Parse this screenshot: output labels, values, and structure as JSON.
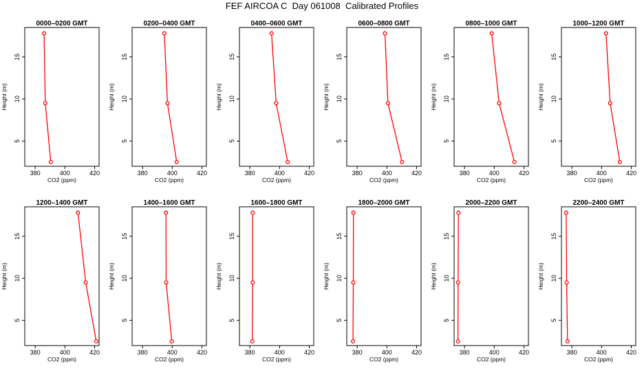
{
  "title": "FEF AIRCOA C  Day 061008  Calibrated Profiles",
  "colors": {
    "line": "#ff0000",
    "marker": "#ff0000",
    "axis": "#000000"
  },
  "chart_data": [
    {
      "type": "line",
      "title": "0000–0200 GMT",
      "xlabel": "CO2 (ppm)",
      "ylabel": "Height (m)",
      "xlim": [
        373,
        423
      ],
      "ylim": [
        2,
        18.5
      ],
      "xticks": [
        380,
        400,
        420
      ],
      "yticks": [
        5,
        10,
        15
      ],
      "x": [
        386,
        386.8,
        390.5
      ],
      "y": [
        17.8,
        9.5,
        2.5
      ]
    },
    {
      "type": "line",
      "title": "0200–0400 GMT",
      "xlabel": "CO2 (ppm)",
      "ylabel": "Height (m)",
      "xlim": [
        373,
        423
      ],
      "ylim": [
        2,
        18.5
      ],
      "xticks": [
        380,
        400,
        420
      ],
      "yticks": [
        5,
        10,
        15
      ],
      "x": [
        394.7,
        396.8,
        403
      ],
      "y": [
        17.8,
        9.5,
        2.5
      ]
    },
    {
      "type": "line",
      "title": "0400–0600 GMT",
      "xlabel": "CO2 (ppm)",
      "ylabel": "Height (m)",
      "xlim": [
        373,
        423
      ],
      "ylim": [
        2,
        18.5
      ],
      "xticks": [
        380,
        400,
        420
      ],
      "yticks": [
        5,
        10,
        15
      ],
      "x": [
        394.6,
        397.7,
        405.5
      ],
      "y": [
        17.8,
        9.5,
        2.5
      ]
    },
    {
      "type": "line",
      "title": "0600–0800 GMT",
      "xlabel": "CO2 (ppm)",
      "ylabel": "Height (m)",
      "xlim": [
        373,
        423
      ],
      "ylim": [
        2,
        18.5
      ],
      "xticks": [
        380,
        400,
        420
      ],
      "yticks": [
        5,
        10,
        15
      ],
      "x": [
        398.7,
        400.7,
        410.2
      ],
      "y": [
        17.8,
        9.5,
        2.5
      ]
    },
    {
      "type": "line",
      "title": "0800–1000 GMT",
      "xlabel": "CO2 (ppm)",
      "ylabel": "Height (m)",
      "xlim": [
        373,
        423
      ],
      "ylim": [
        2,
        18.5
      ],
      "xticks": [
        380,
        400,
        420
      ],
      "yticks": [
        5,
        10,
        15
      ],
      "x": [
        398.3,
        403.3,
        413.6
      ],
      "y": [
        17.8,
        9.5,
        2.5
      ]
    },
    {
      "type": "line",
      "title": "1000–1200 GMT",
      "xlabel": "CO2 (ppm)",
      "ylabel": "Height (m)",
      "xlim": [
        373,
        423
      ],
      "ylim": [
        2,
        18.5
      ],
      "xticks": [
        380,
        400,
        420
      ],
      "yticks": [
        5,
        10,
        15
      ],
      "x": [
        403,
        405.8,
        412.3
      ],
      "y": [
        17.8,
        9.5,
        2.5
      ]
    },
    {
      "type": "line",
      "title": "1200–1400 GMT",
      "xlabel": "CO2 (ppm)",
      "ylabel": "Height (m)",
      "xlim": [
        373,
        423
      ],
      "ylim": [
        2,
        18.5
      ],
      "xticks": [
        380,
        400,
        420
      ],
      "yticks": [
        5,
        10,
        15
      ],
      "x": [
        408.8,
        414,
        421.1
      ],
      "y": [
        17.8,
        9.5,
        2.5
      ]
    },
    {
      "type": "line",
      "title": "1400–1600 GMT",
      "xlabel": "CO2 (ppm)",
      "ylabel": "Height (m)",
      "xlim": [
        373,
        423
      ],
      "ylim": [
        2,
        18.5
      ],
      "xticks": [
        380,
        400,
        420
      ],
      "yticks": [
        5,
        10,
        15
      ],
      "x": [
        395.8,
        395.9,
        399.7
      ],
      "y": [
        17.8,
        9.5,
        2.5
      ]
    },
    {
      "type": "line",
      "title": "1600–1800 GMT",
      "xlabel": "CO2 (ppm)",
      "ylabel": "Height (m)",
      "xlim": [
        373,
        423
      ],
      "ylim": [
        2,
        18.5
      ],
      "xticks": [
        380,
        400,
        420
      ],
      "yticks": [
        5,
        10,
        15
      ],
      "x": [
        381.9,
        381.9,
        381.6
      ],
      "y": [
        17.8,
        9.5,
        2.5
      ]
    },
    {
      "type": "line",
      "title": "1800–2000 GMT",
      "xlabel": "CO2 (ppm)",
      "ylabel": "Height (m)",
      "xlim": [
        373,
        423
      ],
      "ylim": [
        2,
        18.5
      ],
      "xticks": [
        380,
        400,
        420
      ],
      "yticks": [
        5,
        10,
        15
      ],
      "x": [
        377.5,
        377.4,
        377.2
      ],
      "y": [
        17.8,
        9.5,
        2.5
      ]
    },
    {
      "type": "line",
      "title": "2000–2200 GMT",
      "xlabel": "CO2 (ppm)",
      "ylabel": "Height (m)",
      "xlim": [
        373,
        423
      ],
      "ylim": [
        2,
        18.5
      ],
      "xticks": [
        380,
        400,
        420
      ],
      "yticks": [
        5,
        10,
        15
      ],
      "x": [
        375.9,
        375.7,
        375.6
      ],
      "y": [
        17.8,
        9.5,
        2.5
      ]
    },
    {
      "type": "line",
      "title": "2200–2400 GMT",
      "xlabel": "CO2 (ppm)",
      "ylabel": "Height (m)",
      "xlim": [
        373,
        423
      ],
      "ylim": [
        2,
        18.5
      ],
      "xticks": [
        380,
        400,
        420
      ],
      "yticks": [
        5,
        10,
        15
      ],
      "x": [
        376.2,
        376.5,
        377.1
      ],
      "y": [
        17.8,
        9.5,
        2.5
      ]
    }
  ]
}
